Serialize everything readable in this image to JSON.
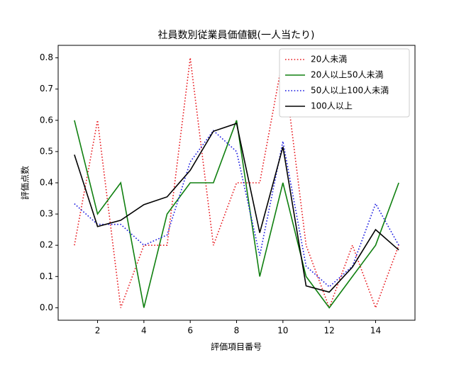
{
  "chart_data": {
    "type": "line",
    "title": "社員数別従業員価値観(一人当たり)",
    "x_label": "評価項目番号",
    "y_label": "評価点数",
    "x": [
      1,
      2,
      3,
      4,
      5,
      6,
      7,
      8,
      9,
      10,
      11,
      12,
      13,
      14,
      15
    ],
    "series": [
      {
        "name": "20人未満",
        "color": "#e8191f",
        "linestyle": "dotted",
        "values": [
          0.2,
          0.6,
          0.0,
          0.2,
          0.2,
          0.8,
          0.2,
          0.4,
          0.4,
          0.8,
          0.2,
          0.0,
          0.2,
          0.0,
          0.2
        ]
      },
      {
        "name": "20人以上50人未満",
        "color": "#108010",
        "linestyle": "solid",
        "values": [
          0.6,
          0.3,
          0.4,
          0.0,
          0.3,
          0.4,
          0.4,
          0.6,
          0.1,
          0.4,
          0.1,
          0.0,
          0.1,
          0.2,
          0.4
        ]
      },
      {
        "name": "50人以上100人未満",
        "color": "#1515e0",
        "linestyle": "dotted",
        "values": [
          0.333,
          0.267,
          0.267,
          0.2,
          0.233,
          0.467,
          0.567,
          0.5,
          0.167,
          0.533,
          0.133,
          0.067,
          0.133,
          0.333,
          0.2
        ]
      },
      {
        "name": "100人以上",
        "color": "#000000",
        "linestyle": "solid",
        "values": [
          0.49,
          0.26,
          0.28,
          0.33,
          0.355,
          0.44,
          0.565,
          0.59,
          0.24,
          0.515,
          0.07,
          0.05,
          0.13,
          0.25,
          0.185
        ]
      }
    ],
    "xlim": [
      0.3,
      15.7
    ],
    "ylim": [
      -0.04,
      0.84
    ],
    "xticks": [
      2,
      4,
      6,
      8,
      10,
      12,
      14
    ],
    "yticks": [
      {
        "value": 0,
        "label": "0.0"
      },
      0.1,
      0.2,
      0.3,
      0.4,
      0.5,
      0.6,
      0.7,
      0.8
    ],
    "legend": "upper right"
  }
}
